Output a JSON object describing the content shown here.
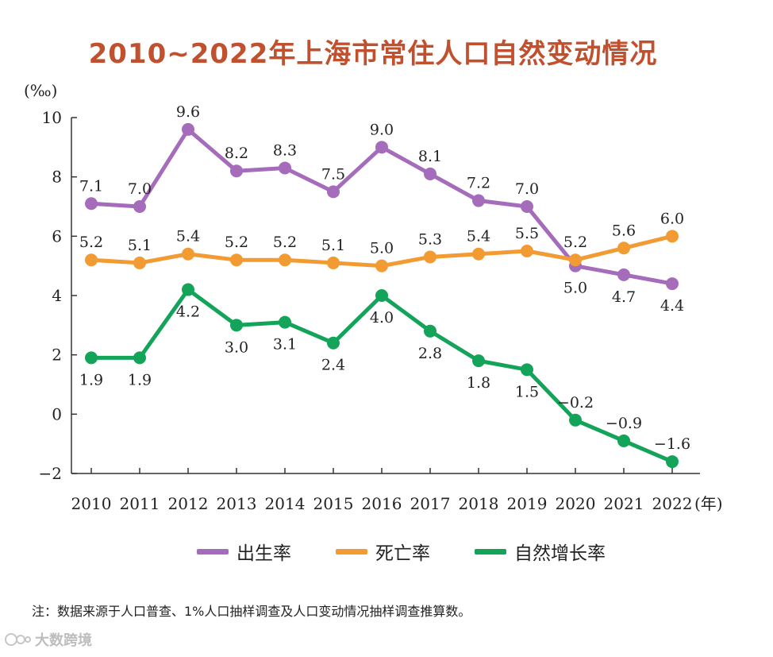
{
  "title": "2010~2022年上海市常住人口自然变动情况",
  "note": "注：数据来源于人口普查、1%人口抽样调查及人口变动情况抽样调查推算数。",
  "watermark": "大数跨境",
  "colors": {
    "title": "#c0502e",
    "axis": "#333333"
  },
  "chart_data": {
    "type": "line",
    "ylabel": "(‰)",
    "xlabel": "(年)",
    "ylim": [
      -2,
      10
    ],
    "yticks": [
      10,
      8,
      6,
      4,
      2,
      0,
      -2
    ],
    "ytick_labels": [
      "10",
      "8",
      "6",
      "4",
      "2",
      "0",
      "−2"
    ],
    "grid": false,
    "legend_position": "bottom",
    "categories": [
      "2010",
      "2011",
      "2012",
      "2013",
      "2014",
      "2015",
      "2016",
      "2017",
      "2018",
      "2019",
      "2020",
      "2021",
      "2022"
    ],
    "series": [
      {
        "name": "出生率",
        "color": "#a56cbb",
        "values": [
          7.1,
          7.0,
          9.6,
          8.2,
          8.3,
          7.5,
          9.0,
          8.1,
          7.2,
          7.0,
          5.0,
          4.7,
          4.4
        ],
        "labels": [
          "7.1",
          "7.0",
          "9.6",
          "8.2",
          "8.3",
          "7.5",
          "9.0",
          "8.1",
          "7.2",
          "7.0",
          "5.0",
          "4.7",
          "4.4"
        ],
        "label_pos": [
          "above",
          "above",
          "above",
          "above",
          "above",
          "above",
          "above",
          "above",
          "above",
          "above",
          "below",
          "below",
          "below"
        ]
      },
      {
        "name": "死亡率",
        "color": "#f29b32",
        "values": [
          5.2,
          5.1,
          5.4,
          5.2,
          5.2,
          5.1,
          5.0,
          5.3,
          5.4,
          5.5,
          5.2,
          5.6,
          6.0
        ],
        "labels": [
          "5.2",
          "5.1",
          "5.4",
          "5.2",
          "5.2",
          "5.1",
          "5.0",
          "5.3",
          "5.4",
          "5.5",
          "5.2",
          "5.6",
          "6.0"
        ],
        "label_pos": [
          "above",
          "above",
          "above",
          "above",
          "above",
          "above",
          "above",
          "above",
          "above",
          "above",
          "above",
          "above",
          "above"
        ]
      },
      {
        "name": "自然增长率",
        "color": "#13a45a",
        "values": [
          1.9,
          1.9,
          4.2,
          3.0,
          3.1,
          2.4,
          4.0,
          2.8,
          1.8,
          1.5,
          -0.2,
          -0.9,
          -1.6
        ],
        "labels": [
          "1.9",
          "1.9",
          "4.2",
          "3.0",
          "3.1",
          "2.4",
          "4.0",
          "2.8",
          "1.8",
          "1.5",
          "−0.2",
          "−0.9",
          "−1.6"
        ],
        "label_pos": [
          "below",
          "below",
          "below",
          "below",
          "below",
          "below",
          "below",
          "below",
          "below",
          "below",
          "above",
          "above",
          "above"
        ]
      }
    ]
  }
}
